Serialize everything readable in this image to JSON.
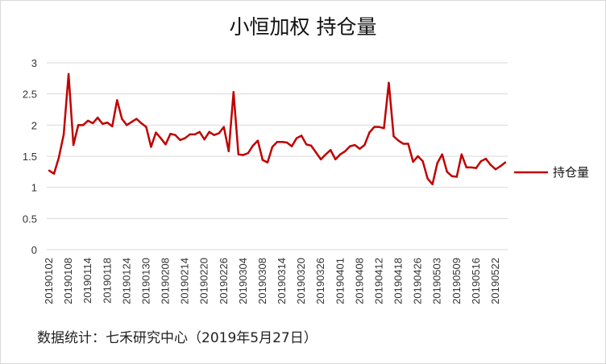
{
  "title": "小恒加权 持仓量",
  "source_note": "数据统计：七禾研究中心（2019年5月27日）",
  "chart_data": {
    "type": "line",
    "title": "小恒加权 持仓量",
    "ylim": [
      0,
      3
    ],
    "yticks": [
      0,
      0.5,
      1,
      1.5,
      2,
      2.5,
      3
    ],
    "ytick_labels": [
      "0",
      "0.5",
      "1",
      "1.5",
      "2",
      "2.5",
      "3"
    ],
    "grid": true,
    "legend_position": "right",
    "series_color": "#c00000",
    "tick_labels": [
      "20190102",
      "20190108",
      "20190114",
      "20190118",
      "20190124",
      "20190130",
      "20190208",
      "20190214",
      "20190220",
      "20190226",
      "20190304",
      "20190308",
      "20190314",
      "20190320",
      "20190326",
      "20190401",
      "20190408",
      "20190412",
      "20190418",
      "20190426",
      "20190503",
      "20190509",
      "20190516",
      "20190522"
    ],
    "series": [
      {
        "name": "持仓量",
        "values": [
          1.27,
          1.22,
          1.48,
          1.85,
          2.82,
          1.68,
          2.0,
          2.0,
          2.07,
          2.03,
          2.12,
          2.02,
          2.04,
          1.98,
          2.4,
          2.1,
          2.0,
          2.05,
          2.1,
          2.03,
          1.97,
          1.65,
          1.88,
          1.79,
          1.69,
          1.86,
          1.84,
          1.76,
          1.79,
          1.85,
          1.85,
          1.89,
          1.77,
          1.89,
          1.84,
          1.87,
          1.97,
          1.58,
          2.53,
          1.53,
          1.52,
          1.55,
          1.67,
          1.75,
          1.44,
          1.4,
          1.65,
          1.73,
          1.73,
          1.72,
          1.66,
          1.79,
          1.83,
          1.69,
          1.67,
          1.56,
          1.45,
          1.53,
          1.6,
          1.45,
          1.53,
          1.58,
          1.66,
          1.68,
          1.62,
          1.68,
          1.88,
          1.97,
          1.97,
          1.95,
          2.68,
          1.82,
          1.75,
          1.7,
          1.7,
          1.41,
          1.5,
          1.42,
          1.14,
          1.05,
          1.39,
          1.53,
          1.25,
          1.18,
          1.17,
          1.53,
          1.32,
          1.32,
          1.31,
          1.42,
          1.46,
          1.36,
          1.29,
          1.34,
          1.4
        ]
      }
    ]
  }
}
